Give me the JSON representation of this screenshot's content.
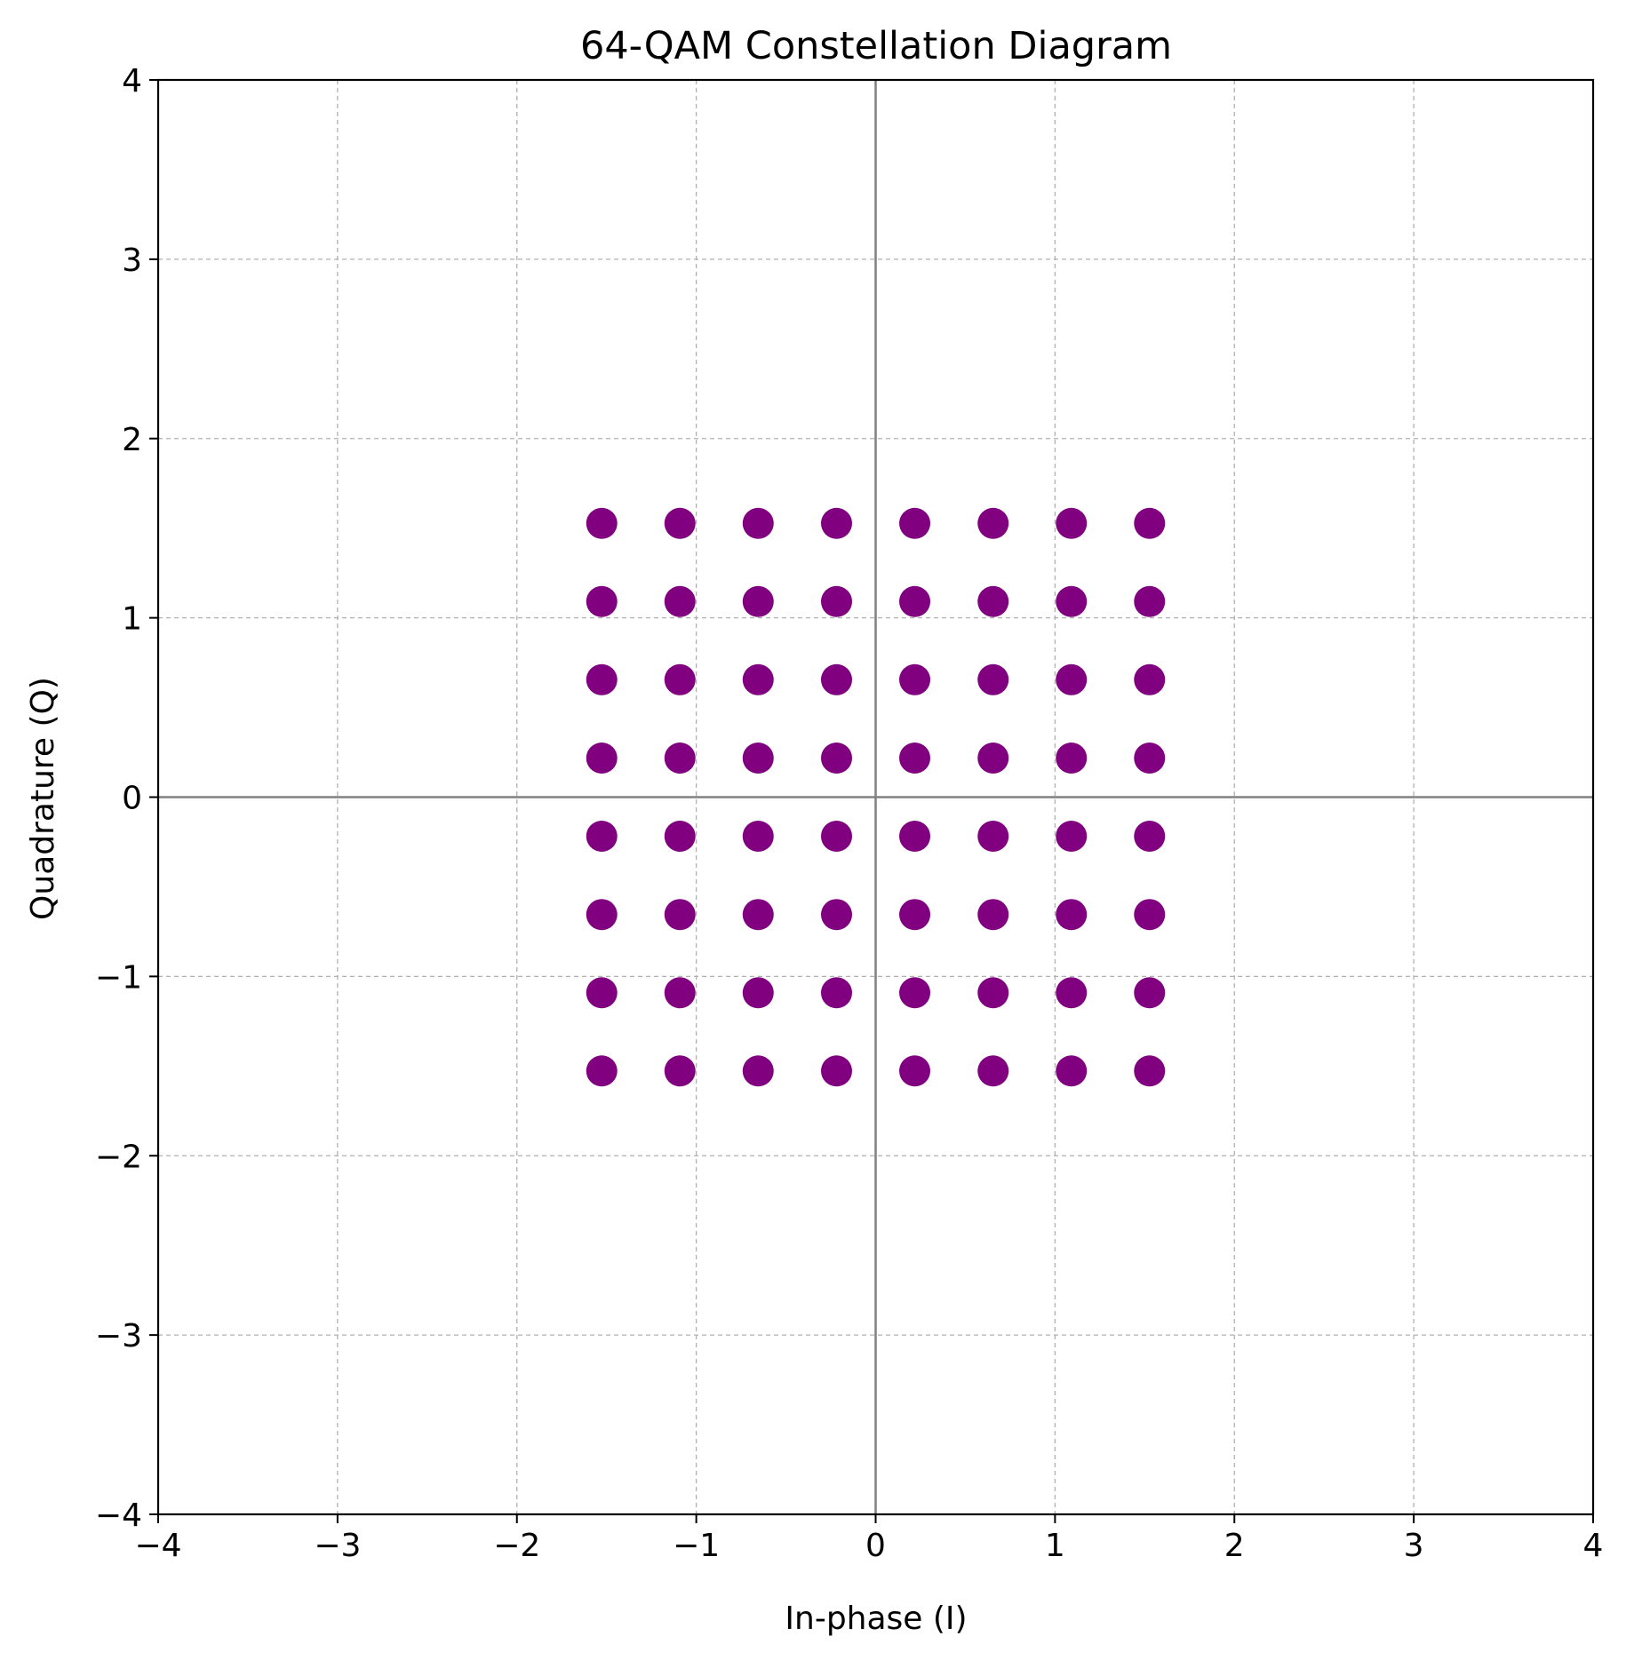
{
  "chart_data": {
    "type": "scatter",
    "title": "64-QAM Constellation Diagram",
    "xlabel": "In-phase (I)",
    "ylabel": "Quadrature (Q)",
    "xlim": [
      -4,
      4
    ],
    "ylim": [
      -4,
      4
    ],
    "xticks": [
      -4,
      -3,
      -2,
      -1,
      0,
      1,
      2,
      3,
      4
    ],
    "yticks": [
      -4,
      -3,
      -2,
      -1,
      0,
      1,
      2,
      3,
      4
    ],
    "xtick_labels": [
      "−4",
      "−3",
      "−2",
      "−1",
      "0",
      "1",
      "2",
      "3",
      "4"
    ],
    "ytick_labels": [
      "−4",
      "−3",
      "−2",
      "−1",
      "0",
      "1",
      "2",
      "3",
      "4"
    ],
    "grid": true,
    "grid_style": "dashed",
    "zero_lines": true,
    "marker_color": "#800080",
    "levels": [
      -1.527,
      -1.091,
      -0.655,
      -0.218,
      0.218,
      0.655,
      1.091,
      1.527
    ],
    "point_count": 64
  },
  "colors": {
    "points": "#800080",
    "grid": "#b0b0b0",
    "zero_lines": "#808080",
    "axes": "#000000"
  }
}
